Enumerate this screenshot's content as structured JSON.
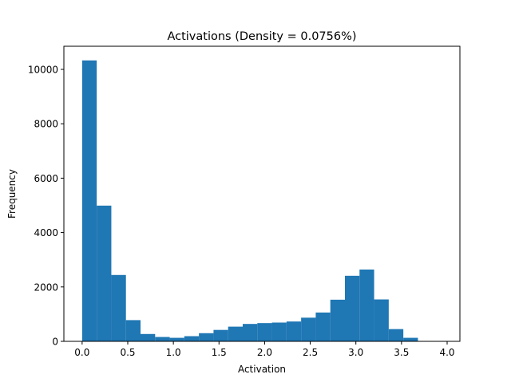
{
  "colors": {
    "bar": "#1f77b4",
    "axis": "#000000",
    "background": "#ffffff"
  },
  "chart_data": {
    "type": "bar",
    "title": "Activations (Density = 0.0756%)",
    "xlabel": "Activation",
    "ylabel": "Frequency",
    "xlim": [
      -0.2,
      4.14
    ],
    "ylim": [
      0,
      10850
    ],
    "bin_width": 0.16,
    "bin_edges": [
      0.0,
      0.16,
      0.32,
      0.48,
      0.64,
      0.8,
      0.96,
      1.12,
      1.28,
      1.44,
      1.6,
      1.76,
      1.92,
      2.08,
      2.24,
      2.4,
      2.56,
      2.72,
      2.88,
      3.04,
      3.2,
      3.36,
      3.52,
      3.68,
      3.84
    ],
    "values": [
      10330,
      4990,
      2440,
      780,
      270,
      160,
      130,
      190,
      300,
      420,
      540,
      640,
      670,
      690,
      730,
      870,
      1060,
      1530,
      2410,
      2640,
      1540,
      450,
      130,
      0
    ],
    "x_ticks": [
      0.0,
      0.5,
      1.0,
      1.5,
      2.0,
      2.5,
      3.0,
      3.5,
      4.0
    ],
    "x_tick_labels": [
      "0.0",
      "0.5",
      "1.0",
      "1.5",
      "2.0",
      "2.5",
      "3.0",
      "3.5",
      "4.0"
    ],
    "y_ticks": [
      0,
      2000,
      4000,
      6000,
      8000,
      10000
    ],
    "y_tick_labels": [
      "0",
      "2000",
      "4000",
      "6000",
      "8000",
      "10000"
    ],
    "grid": false,
    "legend": "none"
  }
}
